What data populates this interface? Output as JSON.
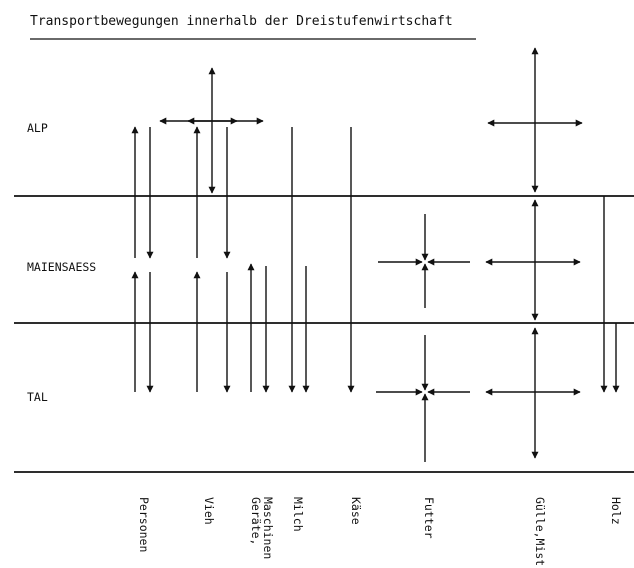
{
  "title": "Transportbewegungen innerhalb der Dreistufenwirtschaft",
  "zones": [
    "ALP",
    "MAIENSAESS",
    "TAL"
  ],
  "columns": [
    {
      "lines": [
        "Personen"
      ]
    },
    {
      "lines": [
        "Vieh"
      ]
    },
    {
      "lines": [
        "Geräte,",
        "Maschinen"
      ]
    },
    {
      "lines": [
        "Milch"
      ]
    },
    {
      "lines": [
        "Käse"
      ]
    },
    {
      "lines": [
        "Futter"
      ]
    },
    {
      "lines": [
        "Gülle,Mist"
      ]
    },
    {
      "lines": [
        "Holz"
      ]
    }
  ],
  "colors": {
    "ink": "#111111",
    "background": "#ffffff"
  }
}
